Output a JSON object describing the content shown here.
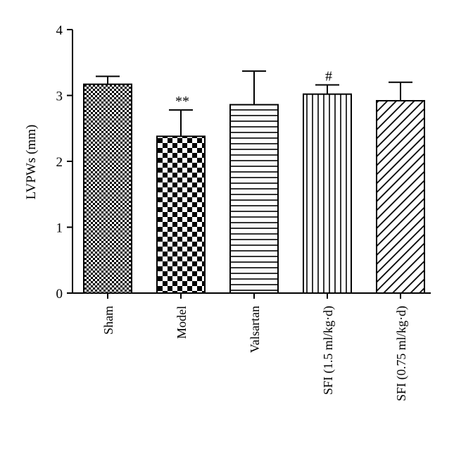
{
  "chart_data": {
    "type": "bar",
    "ylabel": "LVPWs (mm)",
    "ylim": [
      0,
      4
    ],
    "yticks": [
      0,
      1,
      2,
      3,
      4
    ],
    "grid": false,
    "categories": [
      "Sham",
      "Model",
      "Valsartan",
      "SFI (1.5 ml/kg·d)",
      "SFI (0.75 ml/kg·d)"
    ],
    "values": [
      3.17,
      2.38,
      2.86,
      3.02,
      2.92
    ],
    "errors": [
      0.12,
      0.4,
      0.51,
      0.14,
      0.28
    ],
    "annotations": [
      "",
      "**",
      "",
      "#",
      ""
    ],
    "patterns": [
      "fine-checker",
      "coarse-checker",
      "horizontal-lines",
      "vertical-lines",
      "diagonal-lines"
    ],
    "colors": {
      "bar_fill": "#ffffff",
      "pattern": "#000000",
      "axis": "#000000"
    }
  }
}
